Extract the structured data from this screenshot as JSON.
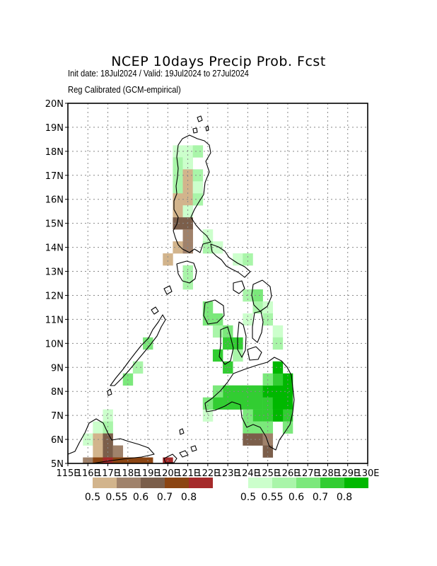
{
  "title": "NCEP 10days Precip Prob. Fcst",
  "subtitle_dates": "Init date: 18Jul2024 / Valid: 19Jul2024 to 27Jul2024",
  "subtitle_method": "Reg Calibrated (GCM-empirical)",
  "map": {
    "lon_range": [
      115,
      130
    ],
    "lat_range": [
      5,
      20
    ],
    "grid_step_deg": 0.5,
    "gridlines": true,
    "lat_ticks": [
      "5N",
      "6N",
      "7N",
      "8N",
      "9N",
      "10N",
      "11N",
      "12N",
      "13N",
      "14N",
      "15N",
      "16N",
      "17N",
      "18N",
      "19N",
      "20N"
    ],
    "lon_ticks": [
      "115E",
      "116E",
      "117E",
      "118E",
      "119E",
      "120E",
      "121E",
      "122E",
      "123E",
      "124E",
      "125E",
      "126E",
      "127E",
      "128E",
      "129E",
      "130E"
    ]
  },
  "legend_dry": {
    "labels": [
      "0.5",
      "0.55",
      "0.6",
      "0.7",
      "0.8"
    ],
    "colors": [
      "#d2b48c",
      "#a0826b",
      "#7b5e4a",
      "#8b4513",
      "#a52a2a"
    ]
  },
  "legend_wet": {
    "labels": [
      "0.5",
      "0.55",
      "0.6",
      "0.7",
      "0.8"
    ],
    "colors": [
      "#ccffcc",
      "#a9f5a9",
      "#7be87b",
      "#32cd32",
      "#00b800"
    ]
  },
  "cells": [
    {
      "lon": 120.5,
      "lat": 18.0,
      "cat": "w1"
    },
    {
      "lon": 120.5,
      "lat": 17.5,
      "cat": "w2"
    },
    {
      "lon": 120.5,
      "lat": 17.0,
      "cat": "w2"
    },
    {
      "lon": 120.5,
      "lat": 16.5,
      "cat": "w2"
    },
    {
      "lon": 120.5,
      "lat": 16.0,
      "cat": "d1"
    },
    {
      "lon": 120.5,
      "lat": 15.5,
      "cat": "d1"
    },
    {
      "lon": 120.5,
      "lat": 15.0,
      "cat": "d3"
    },
    {
      "lon": 121.0,
      "lat": 18.0,
      "cat": "w1"
    },
    {
      "lon": 121.0,
      "lat": 17.5,
      "cat": "w1"
    },
    {
      "lon": 121.0,
      "lat": 17.0,
      "cat": "d1"
    },
    {
      "lon": 121.0,
      "lat": 16.5,
      "cat": "d1"
    },
    {
      "lon": 121.0,
      "lat": 16.0,
      "cat": "d1"
    },
    {
      "lon": 121.0,
      "lat": 15.5,
      "cat": "w1"
    },
    {
      "lon": 121.0,
      "lat": 15.0,
      "cat": "d3"
    },
    {
      "lon": 121.0,
      "lat": 14.5,
      "cat": "d2"
    },
    {
      "lon": 120.5,
      "lat": 14.0,
      "cat": "d1"
    },
    {
      "lon": 121.0,
      "lat": 14.0,
      "cat": "d2"
    },
    {
      "lon": 120.0,
      "lat": 13.5,
      "cat": "d1"
    },
    {
      "lon": 121.0,
      "lat": 13.0,
      "cat": "w2"
    },
    {
      "lon": 121.0,
      "lat": 12.5,
      "cat": "w2"
    },
    {
      "lon": 121.5,
      "lat": 17.0,
      "cat": "w2"
    },
    {
      "lon": 121.5,
      "lat": 16.5,
      "cat": "w1"
    },
    {
      "lon": 121.5,
      "lat": 16.0,
      "cat": "w2"
    },
    {
      "lon": 121.5,
      "lat": 18.0,
      "cat": "w2"
    },
    {
      "lon": 122.0,
      "lat": 14.5,
      "cat": "w1"
    },
    {
      "lon": 122.0,
      "lat": 14.0,
      "cat": "w2"
    },
    {
      "lon": 122.5,
      "lat": 14.0,
      "cat": "w1"
    },
    {
      "lon": 123.5,
      "lat": 13.5,
      "cat": "w1"
    },
    {
      "lon": 124.0,
      "lat": 13.5,
      "cat": "w2"
    },
    {
      "lon": 122.0,
      "lat": 11.5,
      "cat": "w3"
    },
    {
      "lon": 122.0,
      "lat": 11.0,
      "cat": "w3"
    },
    {
      "lon": 122.5,
      "lat": 11.0,
      "cat": "w3"
    },
    {
      "lon": 122.5,
      "lat": 10.5,
      "cat": "w2"
    },
    {
      "lon": 123.0,
      "lat": 10.5,
      "cat": "w3"
    },
    {
      "lon": 123.0,
      "lat": 10.0,
      "cat": "w4"
    },
    {
      "lon": 122.5,
      "lat": 9.5,
      "cat": "w4"
    },
    {
      "lon": 123.5,
      "lat": 10.0,
      "cat": "w4"
    },
    {
      "lon": 123.5,
      "lat": 9.5,
      "cat": "w2"
    },
    {
      "lon": 123.0,
      "lat": 9.0,
      "cat": "w4"
    },
    {
      "lon": 124.0,
      "lat": 12.0,
      "cat": "w2"
    },
    {
      "lon": 124.5,
      "lat": 12.0,
      "cat": "w3"
    },
    {
      "lon": 124.5,
      "lat": 11.5,
      "cat": "w2"
    },
    {
      "lon": 125.0,
      "lat": 11.5,
      "cat": "w1"
    },
    {
      "lon": 125.0,
      "lat": 11.0,
      "cat": "w2"
    },
    {
      "lon": 125.5,
      "lat": 10.5,
      "cat": "w1"
    },
    {
      "lon": 125.5,
      "lat": 10.0,
      "cat": "w2"
    },
    {
      "lon": 124.0,
      "lat": 11.0,
      "cat": "w1"
    },
    {
      "lon": 123.5,
      "lat": 8.0,
      "cat": "w4"
    },
    {
      "lon": 124.0,
      "lat": 8.0,
      "cat": "w4"
    },
    {
      "lon": 124.5,
      "lat": 8.0,
      "cat": "w4"
    },
    {
      "lon": 125.0,
      "lat": 8.0,
      "cat": "w5"
    },
    {
      "lon": 125.5,
      "lat": 8.0,
      "cat": "w5"
    },
    {
      "lon": 126.0,
      "lat": 8.0,
      "cat": "w5"
    },
    {
      "lon": 126.0,
      "lat": 8.5,
      "cat": "w5"
    },
    {
      "lon": 125.5,
      "lat": 8.5,
      "cat": "w4"
    },
    {
      "lon": 125.0,
      "lat": 8.5,
      "cat": "w3"
    },
    {
      "lon": 125.5,
      "lat": 9.0,
      "cat": "w5"
    },
    {
      "lon": 123.0,
      "lat": 8.0,
      "cat": "w4"
    },
    {
      "lon": 122.5,
      "lat": 8.0,
      "cat": "w3"
    },
    {
      "lon": 122.5,
      "lat": 7.5,
      "cat": "w4"
    },
    {
      "lon": 123.0,
      "lat": 7.5,
      "cat": "w4"
    },
    {
      "lon": 123.5,
      "lat": 7.5,
      "cat": "w4"
    },
    {
      "lon": 124.0,
      "lat": 7.5,
      "cat": "w4"
    },
    {
      "lon": 124.5,
      "lat": 7.5,
      "cat": "w4"
    },
    {
      "lon": 125.0,
      "lat": 7.5,
      "cat": "w4"
    },
    {
      "lon": 125.5,
      "lat": 7.5,
      "cat": "w5"
    },
    {
      "lon": 126.0,
      "lat": 7.5,
      "cat": "w5"
    },
    {
      "lon": 126.0,
      "lat": 7.0,
      "cat": "w4"
    },
    {
      "lon": 126.0,
      "lat": 6.5,
      "cat": "w3"
    },
    {
      "lon": 125.5,
      "lat": 7.0,
      "cat": "w5"
    },
    {
      "lon": 125.0,
      "lat": 7.0,
      "cat": "w4"
    },
    {
      "lon": 124.5,
      "lat": 7.0,
      "cat": "w4"
    },
    {
      "lon": 124.0,
      "lat": 7.0,
      "cat": "w3"
    },
    {
      "lon": 124.0,
      "lat": 6.5,
      "cat": "w3"
    },
    {
      "lon": 124.5,
      "lat": 6.5,
      "cat": "w3"
    },
    {
      "lon": 125.0,
      "lat": 6.5,
      "cat": "w3"
    },
    {
      "lon": 124.0,
      "lat": 6.0,
      "cat": "d3"
    },
    {
      "lon": 124.5,
      "lat": 6.0,
      "cat": "d3"
    },
    {
      "lon": 125.0,
      "lat": 6.0,
      "cat": "d2"
    },
    {
      "lon": 125.0,
      "lat": 5.5,
      "cat": "d3"
    },
    {
      "lon": 122.0,
      "lat": 7.0,
      "cat": "w1"
    },
    {
      "lon": 122.0,
      "lat": 7.5,
      "cat": "w3"
    },
    {
      "lon": 119.0,
      "lat": 10.0,
      "cat": "w3"
    },
    {
      "lon": 118.5,
      "lat": 9.0,
      "cat": "w2"
    },
    {
      "lon": 118.0,
      "lat": 8.5,
      "cat": "w3"
    },
    {
      "lon": 117.0,
      "lat": 7.0,
      "cat": "w1"
    },
    {
      "lon": 116.5,
      "lat": 6.5,
      "cat": "w1"
    },
    {
      "lon": 117.0,
      "lat": 6.5,
      "cat": "w2"
    },
    {
      "lon": 116.0,
      "lat": 6.0,
      "cat": "w1"
    },
    {
      "lon": 116.5,
      "lat": 6.0,
      "cat": "d1"
    },
    {
      "lon": 117.0,
      "lat": 6.0,
      "cat": "d3"
    },
    {
      "lon": 116.5,
      "lat": 5.5,
      "cat": "d1"
    },
    {
      "lon": 117.0,
      "lat": 5.5,
      "cat": "d3"
    },
    {
      "lon": 117.5,
      "lat": 5.5,
      "cat": "d2"
    },
    {
      "lon": 116.0,
      "lat": 5.0,
      "cat": "d2"
    },
    {
      "lon": 116.5,
      "lat": 5.0,
      "cat": "d4"
    },
    {
      "lon": 117.0,
      "lat": 5.0,
      "cat": "d5"
    },
    {
      "lon": 117.5,
      "lat": 5.0,
      "cat": "d4"
    },
    {
      "lon": 118.0,
      "lat": 5.0,
      "cat": "d4"
    },
    {
      "lon": 118.5,
      "lat": 5.0,
      "cat": "d4"
    },
    {
      "lon": 119.0,
      "lat": 5.0,
      "cat": "d4"
    },
    {
      "lon": 120.0,
      "lat": 5.0,
      "cat": "d5"
    }
  ]
}
